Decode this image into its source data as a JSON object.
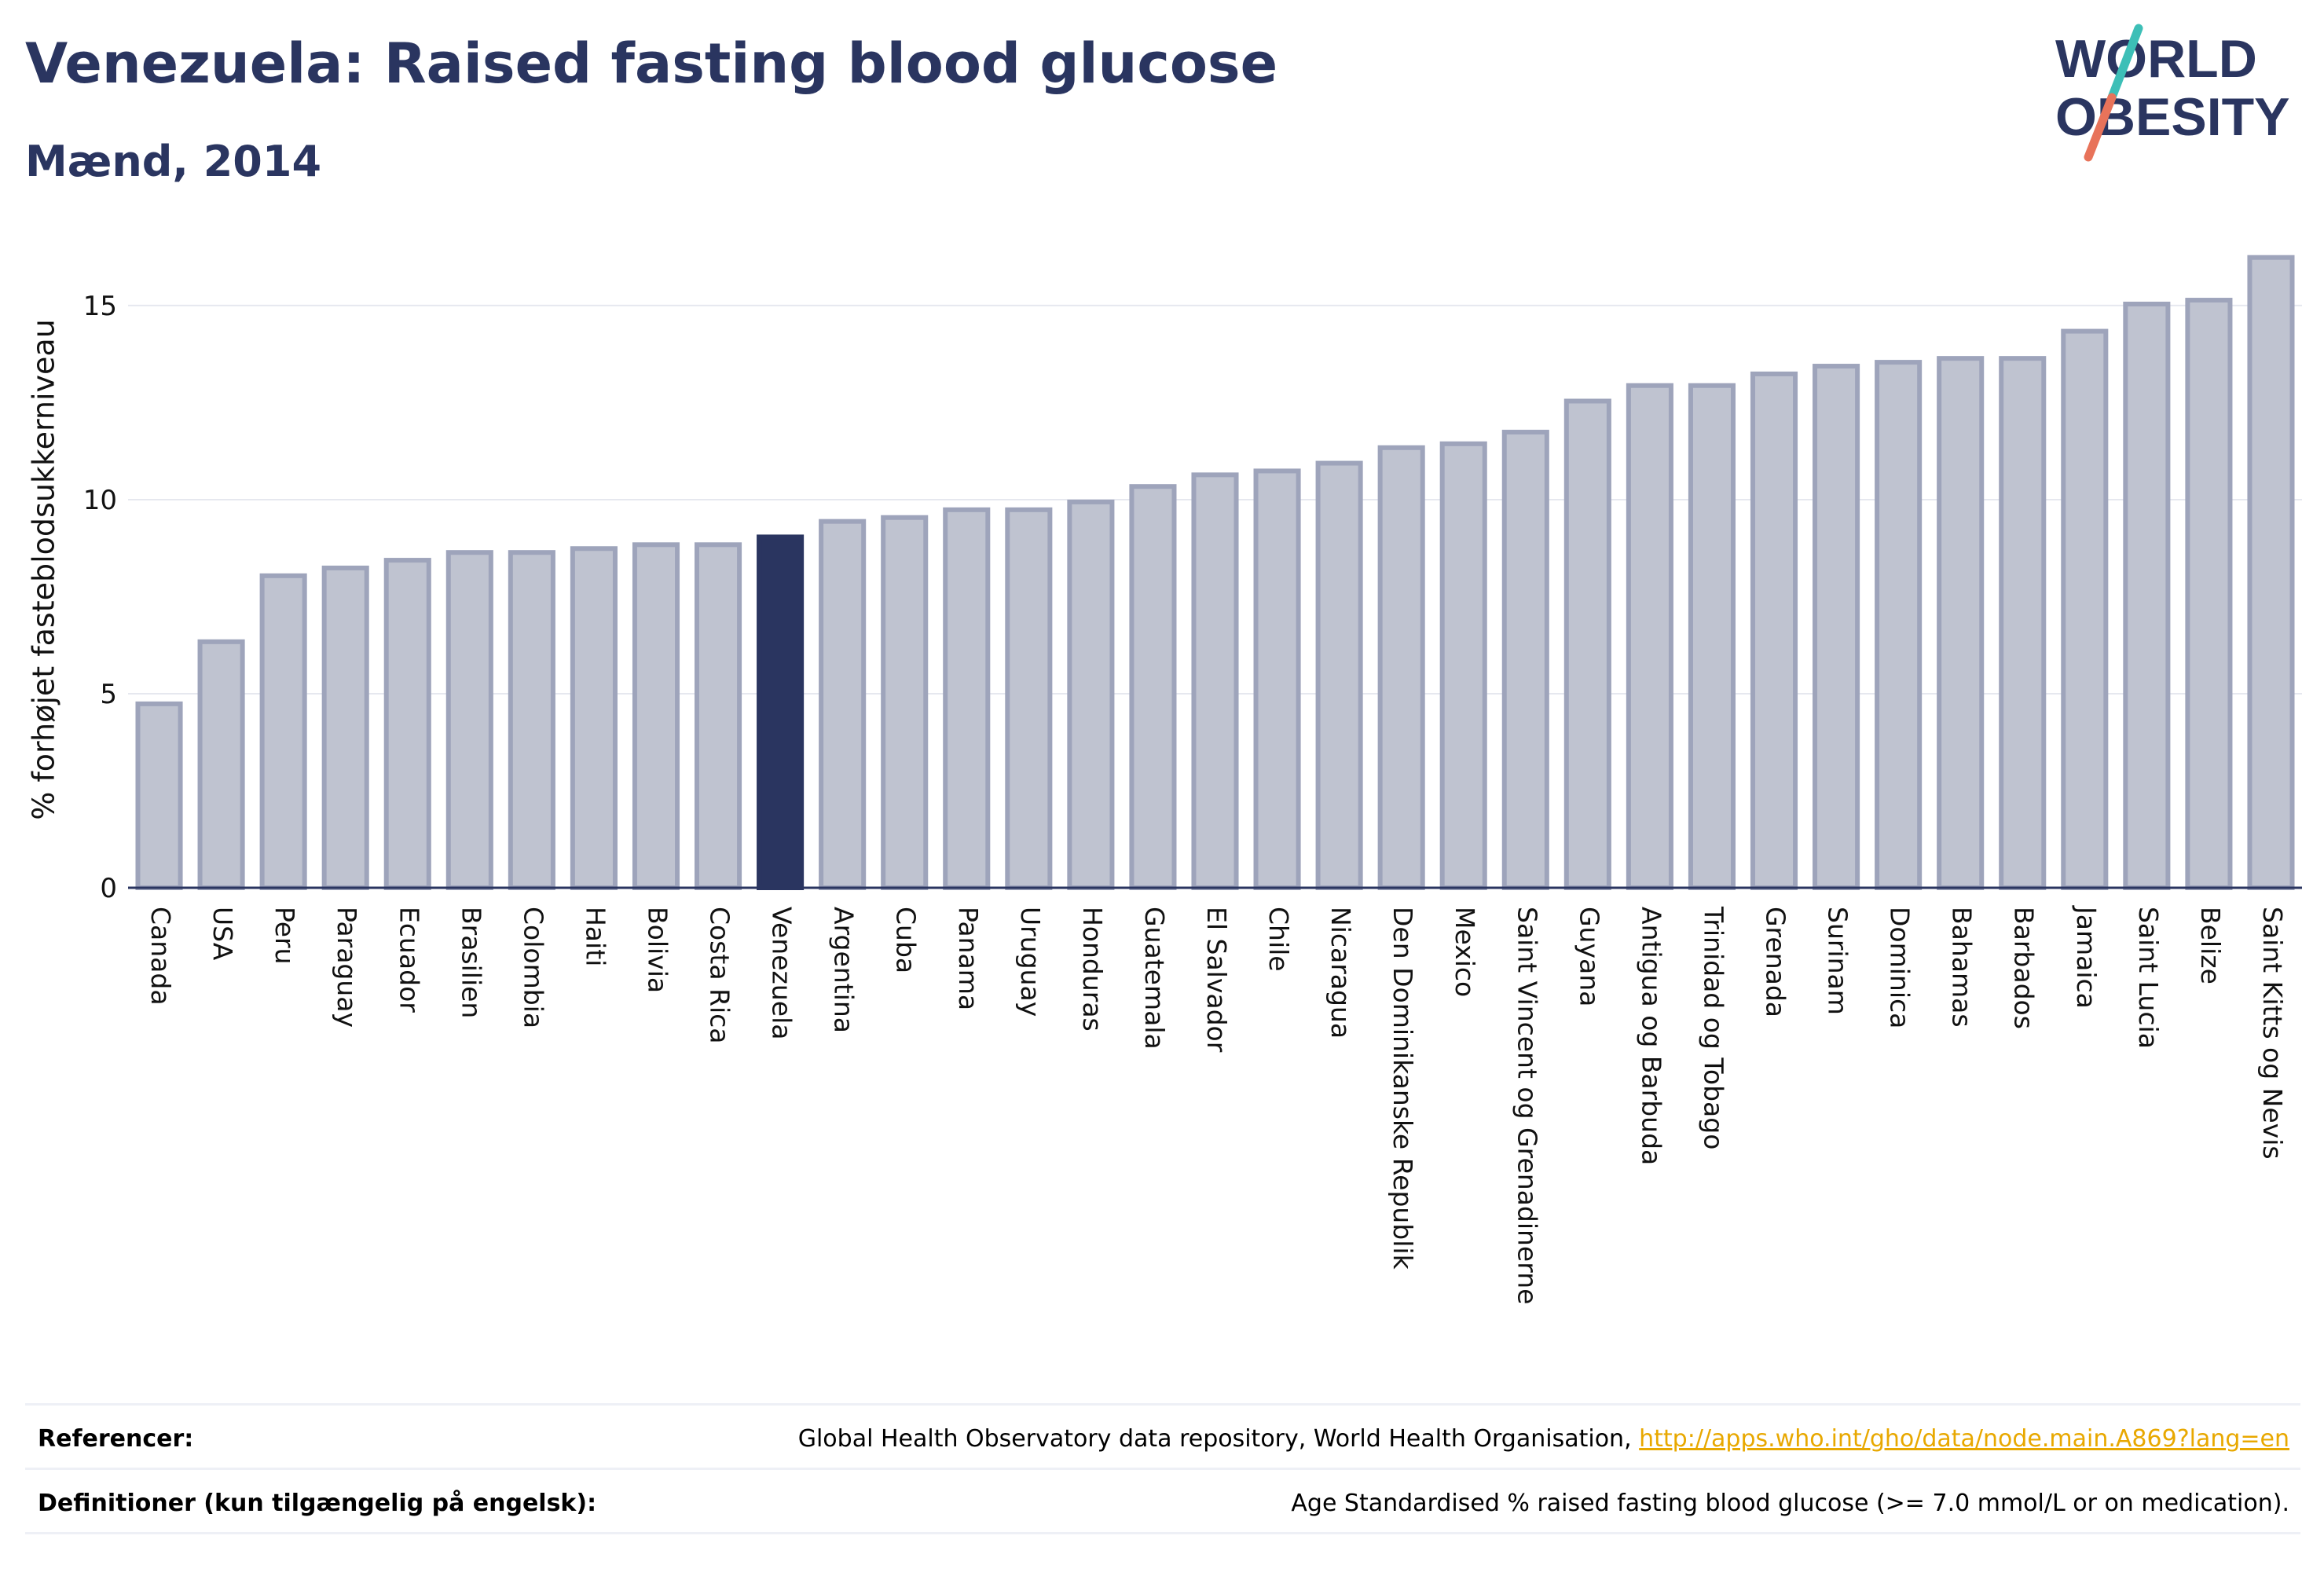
{
  "header": {
    "title": "Venezuela: Raised fasting blood glucose",
    "subtitle": "Mænd, 2014"
  },
  "logo": {
    "line1": "WORLD",
    "line2": "OBESITY",
    "colors": {
      "text": "#2a3560",
      "slash_top": "#3dbfb7",
      "slash_bottom": "#e8735a"
    }
  },
  "chart_data": {
    "type": "bar",
    "title": "Venezuela: Raised fasting blood glucose",
    "subtitle": "Mænd, 2014",
    "xlabel": "",
    "ylabel": "% forhøjet fasteblodsukkerniveau",
    "ylim": [
      0,
      16.8
    ],
    "yticks": [
      0,
      5,
      10,
      15
    ],
    "grid": true,
    "highlight": "Venezuela",
    "colors": {
      "bar": "#bfc3d0",
      "bar_edge": "#9ea4bb",
      "highlight": "#2a3560",
      "axis": "#2a3560",
      "grid": "#e6e8ef"
    },
    "categories": [
      "Canada",
      "USA",
      "Peru",
      "Paraguay",
      "Ecuador",
      "Brasilien",
      "Colombia",
      "Haiti",
      "Bolivia",
      "Costa Rica",
      "Venezuela",
      "Argentina",
      "Cuba",
      "Panama",
      "Uruguay",
      "Honduras",
      "Guatemala",
      "El Salvador",
      "Chile",
      "Nicaragua",
      "Den Dominikanske Republik",
      "Mexico",
      "Saint Vincent og Grenadinerne",
      "Guyana",
      "Antigua og Barbuda",
      "Trinidad og Tobago",
      "Grenada",
      "Surinam",
      "Dominica",
      "Bahamas",
      "Barbados",
      "Jamaica",
      "Saint Lucia",
      "Belize",
      "Saint Kitts og Nevis"
    ],
    "values": [
      4.8,
      6.4,
      8.1,
      8.3,
      8.5,
      8.7,
      8.7,
      8.8,
      8.9,
      8.9,
      9.1,
      9.5,
      9.6,
      9.8,
      9.8,
      10.0,
      10.4,
      10.7,
      10.8,
      11.0,
      11.4,
      11.5,
      11.8,
      12.6,
      13.0,
      13.0,
      13.3,
      13.5,
      13.6,
      13.7,
      13.7,
      14.4,
      15.1,
      15.2,
      16.3
    ]
  },
  "footer": {
    "references_label": "Referencer:",
    "references_text": "Global Health Observatory data repository, World Health Organisation, ",
    "references_link": "http://apps.who.int/gho/data/node.main.A869?lang=en",
    "definitions_label": "Definitioner (kun tilgængelig på engelsk):",
    "definitions_text": "Age Standardised % raised fasting blood glucose (>= 7.0 mmol/L or on medication)."
  }
}
